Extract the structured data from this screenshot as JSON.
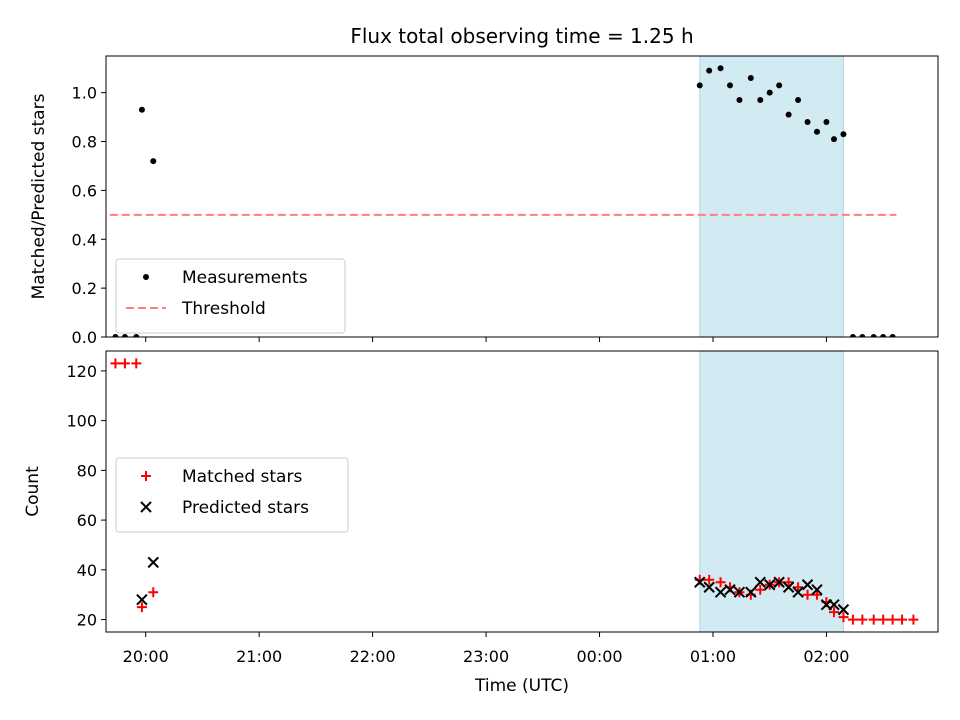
{
  "chart_data": [
    {
      "type": "scatter",
      "title": "Flux total observing time = 1.25 h",
      "xlabel": "",
      "ylabel": "Matched/Predicted stars",
      "xlim": [
        "19:39",
        "02:59"
      ],
      "ylim": [
        0,
        1.15
      ],
      "yticks": [
        0.0,
        0.2,
        0.4,
        0.6,
        0.8,
        1.0
      ],
      "ytick_labels": [
        "0.0",
        "0.2",
        "0.4",
        "0.6",
        "0.8",
        "1.0"
      ],
      "xticks": [
        "20:00",
        "21:00",
        "22:00",
        "23:00",
        "00:00",
        "01:00",
        "02:00"
      ],
      "show_xtick_labels": false,
      "shaded_span": {
        "x0": "00:53",
        "x1": "02:09",
        "color": "#add8e6"
      },
      "grid": false,
      "legend_position": "lower left",
      "series": [
        {
          "name": "Measurements",
          "marker": "dot",
          "color": "#000000",
          "points": [
            [
              "19:44",
              0.0
            ],
            [
              "19:49",
              0.0
            ],
            [
              "19:55",
              0.0
            ],
            [
              "19:58",
              0.93
            ],
            [
              "20:04",
              0.72
            ],
            [
              "00:53",
              1.03
            ],
            [
              "00:58",
              1.09
            ],
            [
              "01:04",
              1.1
            ],
            [
              "01:09",
              1.03
            ],
            [
              "01:14",
              0.97
            ],
            [
              "01:20",
              1.06
            ],
            [
              "01:25",
              0.97
            ],
            [
              "01:30",
              1.0
            ],
            [
              "01:35",
              1.03
            ],
            [
              "01:40",
              0.91
            ],
            [
              "01:45",
              0.97
            ],
            [
              "01:50",
              0.88
            ],
            [
              "01:55",
              0.84
            ],
            [
              "02:00",
              0.88
            ],
            [
              "02:04",
              0.81
            ],
            [
              "02:09",
              0.83
            ],
            [
              "02:14",
              0.0
            ],
            [
              "02:19",
              0.0
            ],
            [
              "02:25",
              0.0
            ],
            [
              "02:30",
              0.0
            ],
            [
              "02:35",
              0.0
            ]
          ]
        },
        {
          "name": "Threshold",
          "line": "dashed",
          "color": "#ff7f7f",
          "points": [
            [
              "19:41",
              0.5
            ],
            [
              "02:37",
              0.5
            ]
          ]
        }
      ]
    },
    {
      "type": "scatter",
      "title": "",
      "xlabel": "Time (UTC)",
      "ylabel": "Count",
      "xlim": [
        "19:39",
        "02:59"
      ],
      "ylim": [
        15,
        128
      ],
      "yticks": [
        20,
        40,
        60,
        80,
        100,
        120
      ],
      "ytick_labels": [
        "20",
        "40",
        "60",
        "80",
        "100",
        "120"
      ],
      "xticks": [
        "20:00",
        "21:00",
        "22:00",
        "23:00",
        "00:00",
        "01:00",
        "02:00"
      ],
      "show_xtick_labels": true,
      "shaded_span": {
        "x0": "00:53",
        "x1": "02:09",
        "color": "#add8e6"
      },
      "grid": false,
      "legend_position": "center left",
      "series": [
        {
          "name": "Matched stars",
          "marker": "plus",
          "color": "#ff0000",
          "points": [
            [
              "19:44",
              123
            ],
            [
              "19:49",
              123
            ],
            [
              "19:55",
              123
            ],
            [
              "19:58",
              25
            ],
            [
              "20:04",
              31
            ],
            [
              "00:53",
              36
            ],
            [
              "00:58",
              36
            ],
            [
              "01:04",
              35
            ],
            [
              "01:09",
              33
            ],
            [
              "01:14",
              31
            ],
            [
              "01:20",
              30
            ],
            [
              "01:25",
              32
            ],
            [
              "01:30",
              34
            ],
            [
              "01:35",
              35
            ],
            [
              "01:40",
              35
            ],
            [
              "01:45",
              33
            ],
            [
              "01:50",
              30
            ],
            [
              "01:55",
              30
            ],
            [
              "02:00",
              27
            ],
            [
              "02:04",
              23
            ],
            [
              "02:09",
              21
            ],
            [
              "02:14",
              20
            ],
            [
              "02:19",
              20
            ],
            [
              "02:25",
              20
            ],
            [
              "02:30",
              20
            ],
            [
              "02:35",
              20
            ],
            [
              "02:40",
              20
            ],
            [
              "02:46",
              20
            ]
          ]
        },
        {
          "name": "Predicted stars",
          "marker": "x",
          "color": "#000000",
          "points": [
            [
              "19:58",
              28
            ],
            [
              "20:04",
              43
            ],
            [
              "00:53",
              35
            ],
            [
              "00:58",
              33
            ],
            [
              "01:04",
              31
            ],
            [
              "01:09",
              32
            ],
            [
              "01:14",
              31
            ],
            [
              "01:20",
              31
            ],
            [
              "01:25",
              35
            ],
            [
              "01:30",
              34
            ],
            [
              "01:35",
              35
            ],
            [
              "01:40",
              33
            ],
            [
              "01:45",
              31
            ],
            [
              "01:50",
              34
            ],
            [
              "01:55",
              32
            ],
            [
              "02:00",
              26
            ],
            [
              "02:04",
              26
            ],
            [
              "02:09",
              24
            ]
          ]
        }
      ]
    }
  ]
}
